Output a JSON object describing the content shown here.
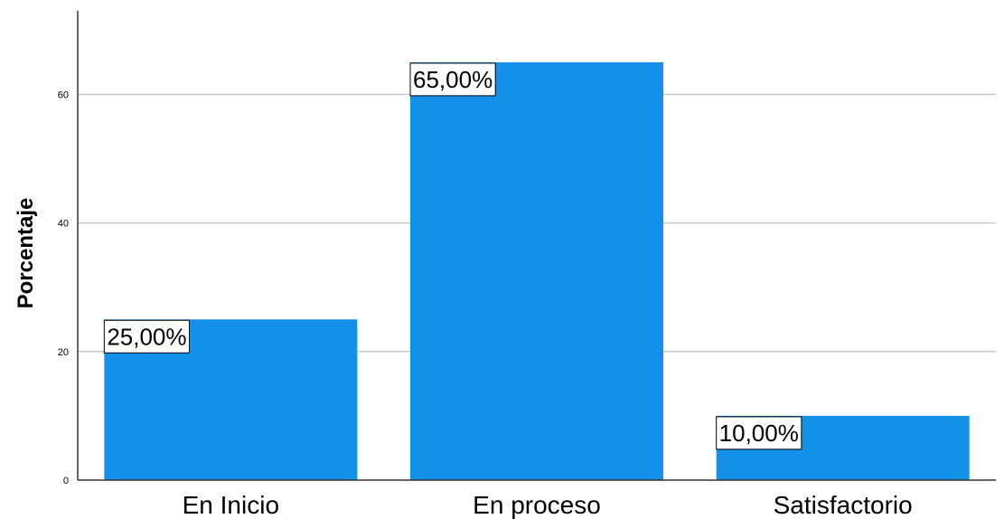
{
  "chart_data": {
    "type": "bar",
    "categories": [
      "En Inicio",
      "En proceso",
      "Satisfactorio"
    ],
    "values": [
      25,
      65,
      10
    ],
    "data_labels": [
      "25,00%",
      "65,00%",
      "10,00%"
    ],
    "title": "",
    "xlabel": "",
    "ylabel": "Porcentaje",
    "ylim": [
      0,
      73
    ],
    "yticks": [
      0,
      20,
      40,
      60
    ],
    "grid": true,
    "bar_color": "#1390E8",
    "grid_color": "#C8C8C8",
    "axis_color": "#333333"
  }
}
